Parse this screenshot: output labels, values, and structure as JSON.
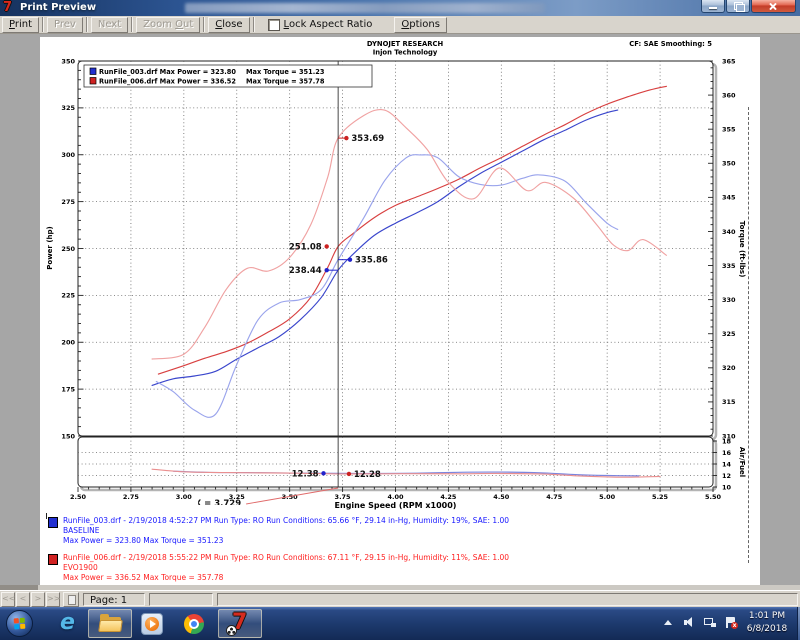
{
  "window": {
    "title": "Print Preview",
    "icon_glyph": "7"
  },
  "toolbar": {
    "buttons": [
      {
        "label": "Print",
        "key": "P",
        "enabled": true
      },
      {
        "label": "Prev",
        "key": "",
        "enabled": false
      },
      {
        "label": "Next",
        "key": "",
        "enabled": false
      },
      {
        "label": "Zoom Out",
        "key": "O",
        "enabled": false
      },
      {
        "label": "Close",
        "key": "C",
        "enabled": true
      }
    ],
    "lock_aspect_checkbox": {
      "label": "Lock Aspect Ratio",
      "key": "L",
      "checked": false
    },
    "options_button": {
      "label": "Options",
      "key": "O",
      "enabled": true
    }
  },
  "chart_data": {
    "type": "line",
    "title": "DYNOJET RESEARCH",
    "subtitle": "Injon Technology",
    "note": "CF: SAE  Smoothing: 5",
    "xlabel": "Engine Speed (RPM x1000)",
    "xlim": [
      2.5,
      5.5
    ],
    "x_tick_step": 0.25,
    "grid": true,
    "legend_position": "top-left",
    "legend": [
      {
        "color": "#2230d0",
        "power_text": "RunFile_003.drf Max Power = 323.80",
        "torque_text": "Max Torque = 351.23"
      },
      {
        "color": "#d02222",
        "power_text": "RunFile_006.drf Max Power = 336.52",
        "torque_text": "Max Torque = 357.78"
      }
    ],
    "main_panel": {
      "ylabel_left": "Power (hp)",
      "ylim_left": [
        150,
        350
      ],
      "yticks_left": [
        350,
        325,
        300,
        275,
        250,
        225,
        200,
        175,
        150
      ],
      "ylabel_right": "Torque (ft-lbs)",
      "ylim_right": [
        310,
        365
      ],
      "yticks_right": [
        365,
        360,
        355,
        350,
        345,
        340,
        335,
        330,
        325,
        320,
        315,
        310
      ],
      "series": [
        {
          "name": "RunFile_003 Power",
          "axis": "power",
          "color": "#3a46cc",
          "points": [
            [
              2.85,
              177
            ],
            [
              2.95,
              180.5
            ],
            [
              3.05,
              182
            ],
            [
              3.15,
              184.5
            ],
            [
              3.25,
              191
            ],
            [
              3.35,
              197
            ],
            [
              3.45,
              203
            ],
            [
              3.55,
              212
            ],
            [
              3.65,
              224
            ],
            [
              3.729,
              238.44
            ],
            [
              3.8,
              247
            ],
            [
              3.9,
              257
            ],
            [
              4.0,
              263.5
            ],
            [
              4.1,
              269
            ],
            [
              4.2,
              275
            ],
            [
              4.3,
              283
            ],
            [
              4.4,
              290
            ],
            [
              4.5,
              296
            ],
            [
              4.6,
              302
            ],
            [
              4.7,
              308
            ],
            [
              4.8,
              313
            ],
            [
              4.9,
              318.5
            ],
            [
              5.0,
              322.5
            ],
            [
              5.05,
              323.8
            ]
          ]
        },
        {
          "name": "RunFile_006 Power",
          "axis": "power",
          "color": "#d84040",
          "points": [
            [
              2.88,
              183
            ],
            [
              3.0,
              187.5
            ],
            [
              3.1,
              191.5
            ],
            [
              3.2,
              195
            ],
            [
              3.3,
              199.5
            ],
            [
              3.4,
              205.5
            ],
            [
              3.5,
              212.5
            ],
            [
              3.6,
              224
            ],
            [
              3.68,
              240
            ],
            [
              3.729,
              251.08
            ],
            [
              3.8,
              258
            ],
            [
              3.9,
              266.5
            ],
            [
              4.0,
              273
            ],
            [
              4.1,
              277.5
            ],
            [
              4.2,
              282
            ],
            [
              4.3,
              287
            ],
            [
              4.4,
              293
            ],
            [
              4.5,
              298.5
            ],
            [
              4.6,
              304.5
            ],
            [
              4.7,
              310.5
            ],
            [
              4.8,
              316
            ],
            [
              4.9,
              322
            ],
            [
              5.0,
              327
            ],
            [
              5.1,
              331
            ],
            [
              5.2,
              334.5
            ],
            [
              5.28,
              336.5
            ]
          ]
        },
        {
          "name": "RunFile_003 Torque",
          "axis": "torque",
          "color": "#9aa4ec",
          "points": [
            [
              2.87,
              318
            ],
            [
              2.95,
              316.5
            ],
            [
              3.05,
              313.8
            ],
            [
              3.15,
              313.2
            ],
            [
              3.25,
              320.5
            ],
            [
              3.35,
              327
            ],
            [
              3.45,
              329.5
            ],
            [
              3.55,
              330
            ],
            [
              3.65,
              331.5
            ],
            [
              3.729,
              335.86
            ],
            [
              3.85,
              342
            ],
            [
              3.95,
              347.5
            ],
            [
              4.05,
              350.8
            ],
            [
              4.12,
              351.23
            ],
            [
              4.2,
              350.8
            ],
            [
              4.3,
              348
            ],
            [
              4.4,
              346.9
            ],
            [
              4.5,
              346.8
            ],
            [
              4.6,
              347.8
            ],
            [
              4.68,
              348.3
            ],
            [
              4.8,
              347.4
            ],
            [
              4.9,
              344.2
            ],
            [
              5.0,
              341.2
            ],
            [
              5.05,
              340.3
            ]
          ]
        },
        {
          "name": "RunFile_006 Torque",
          "axis": "torque",
          "color": "#f0a2a2",
          "points": [
            [
              2.85,
              321.3
            ],
            [
              3.0,
              322
            ],
            [
              3.1,
              326
            ],
            [
              3.2,
              331.5
            ],
            [
              3.3,
              334.6
            ],
            [
              3.4,
              334.2
            ],
            [
              3.5,
              336.2
            ],
            [
              3.6,
              341
            ],
            [
              3.68,
              348
            ],
            [
              3.729,
              353.69
            ],
            [
              3.85,
              357
            ],
            [
              3.95,
              357.78
            ],
            [
              4.05,
              355.2
            ],
            [
              4.15,
              352
            ],
            [
              4.25,
              347.2
            ],
            [
              4.37,
              344.8
            ],
            [
              4.49,
              349.3
            ],
            [
              4.62,
              346
            ],
            [
              4.71,
              347.2
            ],
            [
              4.84,
              344.9
            ],
            [
              4.95,
              341
            ],
            [
              5.03,
              338
            ],
            [
              5.1,
              337.2
            ],
            [
              5.17,
              338.8
            ],
            [
              5.28,
              336.5
            ]
          ]
        }
      ],
      "annotations": [
        {
          "text": "353.69",
          "color": "#cc2222",
          "axis": "torque",
          "value": 353.69,
          "dot_x": 3.768,
          "leader_from": 3.729,
          "side": "right"
        },
        {
          "text": "251.08",
          "color": "#cc2222",
          "axis": "power",
          "value": 251.08,
          "dot_x": 3.675,
          "side": "left"
        },
        {
          "text": "238.44",
          "color": "#2222cc",
          "axis": "power",
          "value": 238.44,
          "dot_x": 3.675,
          "leader_from": 3.729,
          "side": "left"
        },
        {
          "text": "335.86",
          "color": "#2222cc",
          "axis": "torque",
          "value": 335.86,
          "dot_x": 3.785,
          "leader_from": 3.729,
          "side": "right"
        }
      ]
    },
    "af_panel": {
      "ylabel_right": "Air/Fuel",
      "ylim": [
        10,
        18
      ],
      "yticks": [
        18,
        16,
        14,
        12,
        10
      ],
      "series": [
        {
          "name": "RunFile_003 AF",
          "color": "#7b85de",
          "points": [
            [
              2.95,
              12.75
            ],
            [
              3.1,
              12.55
            ],
            [
              3.3,
              12.5
            ],
            [
              3.5,
              12.42
            ],
            [
              3.729,
              12.38
            ],
            [
              3.9,
              12.35
            ],
            [
              4.1,
              12.4
            ],
            [
              4.3,
              12.55
            ],
            [
              4.5,
              12.6
            ],
            [
              4.7,
              12.45
            ],
            [
              4.85,
              12.15
            ],
            [
              5.0,
              12.0
            ],
            [
              5.15,
              11.95
            ]
          ]
        },
        {
          "name": "RunFile_006 AF",
          "color": "#ea8f8f",
          "points": [
            [
              2.85,
              13.1
            ],
            [
              3.0,
              12.65
            ],
            [
              3.2,
              12.5
            ],
            [
              3.5,
              12.42
            ],
            [
              3.729,
              12.28
            ],
            [
              3.9,
              12.3
            ],
            [
              4.1,
              12.32
            ],
            [
              4.3,
              12.3
            ],
            [
              4.5,
              12.35
            ],
            [
              4.7,
              12.25
            ],
            [
              4.85,
              11.95
            ],
            [
              5.0,
              11.75
            ],
            [
              5.1,
              11.7
            ],
            [
              5.25,
              11.85
            ]
          ]
        }
      ],
      "annotations": [
        {
          "text": "12.38",
          "color": "#2222cc",
          "axis": "af",
          "value": 12.38,
          "dot_x": 3.66,
          "side": "left"
        },
        {
          "text": "12.28",
          "color": "#cc2222",
          "axis": "af",
          "value": 12.28,
          "dot_x": 3.78,
          "side": "right"
        }
      ]
    },
    "cursor": {
      "x": 3.729,
      "label": "X = 3.729"
    }
  },
  "results": [
    {
      "line1": "RunFile_003.drf - 2/19/2018 4:52:27 PM  Run Type: RO  Run Conditions: 65.66 °F, 29.14 in-Hg,  Humidity:  19%, SAE: 1.00",
      "line2": "BASELINE",
      "line3": "Max Power = 323.80  Max Torque = 351.23",
      "color": "#1818ff",
      "swatch": "#2230d0"
    },
    {
      "line1": "RunFile_006.drf - 2/19/2018 5:55:22 PM  Run Type: RO  Run Conditions: 67.11 °F, 29.15 in-Hg,  Humidity:  11%, SAE: 1.00",
      "line2": "EVO1900",
      "line3": "Max Power = 336.52  Max Torque = 357.78",
      "color": "#ff2020",
      "swatch": "#d02222"
    }
  ],
  "statusbar": {
    "nav_buttons": [
      "<<",
      "<",
      ">",
      ">>"
    ],
    "page_label": "Page: 1"
  },
  "taskbar": {
    "ie_glyph": "e",
    "dynojet_glyph": "7",
    "clock_time": "1:01 PM",
    "clock_date": "6/8/2018"
  }
}
